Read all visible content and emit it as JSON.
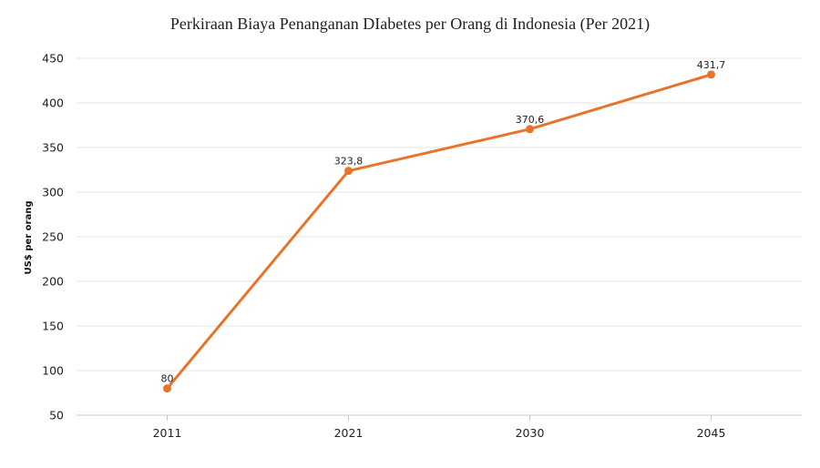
{
  "chart_data": {
    "type": "line",
    "title": "Perkiraan Biaya Penanganan DIabetes per Orang di Indonesia (Per 2021)",
    "xlabel": "",
    "ylabel": "US$ per orang",
    "categories": [
      "2011",
      "2021",
      "2030",
      "2045"
    ],
    "series": [
      {
        "values": [
          80,
          323.8,
          370.6,
          431.7
        ],
        "data_labels": [
          "80",
          "323,8",
          "370,6",
          "431,7"
        ]
      }
    ],
    "ylim": [
      50,
      450
    ],
    "yticks": [
      50,
      100,
      150,
      200,
      250,
      300,
      350,
      400,
      450
    ],
    "grid": "horizontal",
    "legend": "none",
    "line_color": "#E8732A",
    "grid_color": "#e6e6e6",
    "axis_color": "#c8c8c8"
  }
}
